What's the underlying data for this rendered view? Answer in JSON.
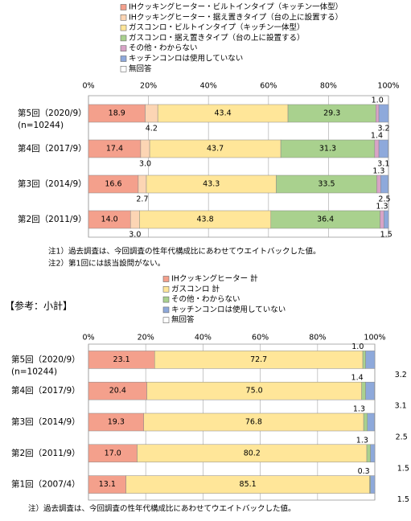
{
  "chart_data": [
    {
      "type": "bar",
      "orientation": "horizontal",
      "stacked": true,
      "categories": [
        "第5回（2020/9）",
        "第4回（2017/9）",
        "第3回（2014/9）",
        "第2回（2011/9）"
      ],
      "sample_size": "(n=10244)",
      "xlim": [
        0,
        100
      ],
      "xticks": [
        {
          "value": 0,
          "label": "0%"
        },
        {
          "value": 20,
          "label": "20%"
        },
        {
          "value": 40,
          "label": "40%"
        },
        {
          "value": 60,
          "label": "60%"
        },
        {
          "value": 80,
          "label": "80%"
        },
        {
          "value": 100,
          "label": "100%"
        }
      ],
      "grid": true,
      "series": [
        {
          "name": "IHクッキングヒーター・ビルトインタイプ（キッチン一体型）",
          "color": "#f4a08c",
          "values": [
            18.9,
            17.4,
            16.6,
            14.0
          ],
          "value_labels": [
            "18.9",
            "17.4",
            "16.6",
            "14.0"
          ]
        },
        {
          "name": "IHクッキングヒーター・据え置きタイプ（台の上に設置する）",
          "color": "#fcd5b4",
          "values": [
            4.2,
            3.0,
            2.7,
            3.0
          ],
          "value_labels": [
            "4.2",
            "3.0",
            "2.7",
            "3.0"
          ]
        },
        {
          "name": "ガスコンロ・ビルトインタイプ（キッチン一体型）",
          "color": "#ffe699",
          "values": [
            43.4,
            43.7,
            43.3,
            43.8
          ],
          "value_labels": [
            "43.4",
            "43.7",
            "43.3",
            "43.8"
          ]
        },
        {
          "name": "ガスコンロ・据え置きタイプ（台の上に設置する）",
          "color": "#a9d18e",
          "values": [
            29.3,
            31.3,
            33.5,
            36.4
          ],
          "value_labels": [
            "29.3",
            "31.3",
            "33.5",
            "36.4"
          ]
        },
        {
          "name": "その他・わからない",
          "color": "#d8a3c6",
          "values": [
            1.0,
            1.4,
            1.3,
            1.3
          ],
          "value_labels": [
            "1.0",
            "1.4",
            "1.3",
            "1.3"
          ]
        },
        {
          "name": "キッチンコンロは使用していない",
          "color": "#8ea9db",
          "values": [
            3.2,
            3.1,
            2.5,
            1.5
          ],
          "value_labels": [
            "3.2",
            "3.1",
            "2.5",
            "1.5"
          ]
        },
        {
          "name": "無回答",
          "color": "#ffffff",
          "values": [
            null,
            null,
            null,
            null
          ],
          "value_labels": [
            null,
            null,
            null,
            null
          ]
        }
      ],
      "notes": [
        "注1）過去調査は、今回調査の性年代構成比にあわせてウエイトバックした値。",
        "注2）第1回には該当設問がない。"
      ]
    },
    {
      "type": "bar",
      "orientation": "horizontal",
      "stacked": true,
      "title": "【参考：小計】",
      "categories": [
        "第5回（2020/9）",
        "第4回（2017/9）",
        "第3回（2014/9）",
        "第2回（2011/9）",
        "第1回（2007/4）"
      ],
      "sample_size": "(n=10244)",
      "xlim": [
        0,
        100
      ],
      "xticks": [
        {
          "value": 0,
          "label": "0%"
        },
        {
          "value": 20,
          "label": "20%"
        },
        {
          "value": 40,
          "label": "40%"
        },
        {
          "value": 60,
          "label": "60%"
        },
        {
          "value": 80,
          "label": "80%"
        },
        {
          "value": 100,
          "label": "100%"
        }
      ],
      "grid": true,
      "series": [
        {
          "name": "IHクッキングヒーター 計",
          "color": "#f4a08c",
          "values": [
            23.1,
            20.4,
            19.3,
            17.0,
            13.1
          ],
          "value_labels": [
            "23.1",
            "20.4",
            "19.3",
            "17.0",
            "13.1"
          ]
        },
        {
          "name": "ガスコンロ 計",
          "color": "#ffe699",
          "values": [
            72.7,
            75.0,
            76.8,
            80.2,
            85.1
          ],
          "value_labels": [
            "72.7",
            "75.0",
            "76.8",
            "80.2",
            "85.1"
          ]
        },
        {
          "name": "その他・わからない",
          "color": "#a9d18e",
          "values": [
            1.0,
            1.4,
            1.3,
            1.3,
            0.3
          ],
          "value_labels": [
            "1.0",
            "1.4",
            "1.3",
            "1.3",
            "0.3"
          ]
        },
        {
          "name": "キッチンコンロは使用していない",
          "color": "#8ea9db",
          "values": [
            3.2,
            3.1,
            2.5,
            1.5,
            1.5
          ],
          "value_labels": [
            "3.2",
            "3.1",
            "2.5",
            "1.5",
            "1.5"
          ]
        },
        {
          "name": "無回答",
          "color": "#ffffff",
          "values": [
            null,
            null,
            null,
            null,
            null
          ],
          "value_labels": [
            null,
            null,
            null,
            null,
            null
          ]
        }
      ],
      "notes": [
        "注）過去調査は、今回調査の性年代構成比にあわせてウエイトバックした値。"
      ]
    }
  ]
}
